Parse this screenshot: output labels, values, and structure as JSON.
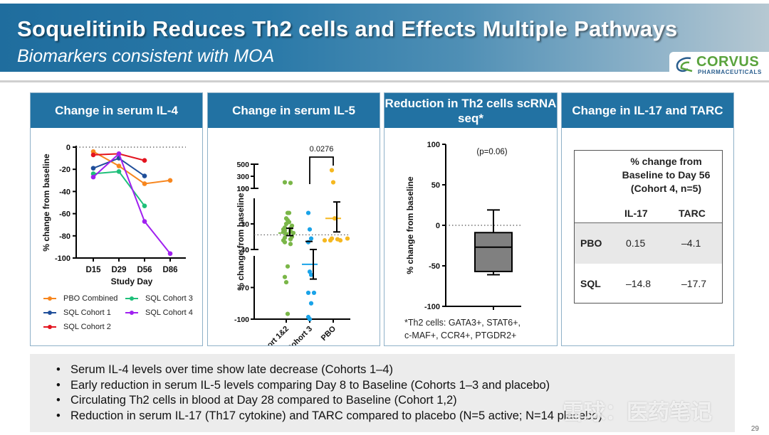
{
  "header": {
    "title": "Soquelitinib Reduces Th2 cells and Effects Multiple Pathways",
    "subtitle": "Biomarkers consistent with MOA",
    "logo_name": "CORVUS",
    "logo_sub": "PHARMACEUTICALS",
    "colors": {
      "banner": "#2272a3",
      "logo_green": "#5aa33d",
      "logo_blue": "#2a5e8e"
    }
  },
  "panels": [
    {
      "title": "Change in serum IL-4"
    },
    {
      "title": "Change in serum IL-5"
    },
    {
      "title": "Reduction in Th2 cells scRNA seq*"
    },
    {
      "title": "Change in IL-17 and TARC"
    }
  ],
  "chart_data": [
    {
      "type": "line",
      "title": "Change in serum IL-4",
      "xlabel": "Study Day",
      "ylabel": "% change from baseline",
      "categories": [
        "D15",
        "D29",
        "D56",
        "D86"
      ],
      "ylim": [
        -100,
        0
      ],
      "yticks": [
        0,
        -20,
        -40,
        -60,
        -80,
        -100
      ],
      "ytick_labels": [
        "0",
        "-20",
        "-40",
        "-60",
        "-80",
        "-100"
      ],
      "reference_line": 0,
      "legend_placement": "bottom",
      "series": [
        {
          "name": "PBO Combined",
          "color": "#f7861e",
          "values": [
            -4,
            -17,
            -33,
            -30
          ]
        },
        {
          "name": "SQL Cohort 1",
          "color": "#1f4e9a",
          "values": [
            -19,
            -10,
            -26,
            null
          ]
        },
        {
          "name": "SQL Cohort 2",
          "color": "#e3141f",
          "values": [
            -7,
            -6,
            -12,
            null
          ]
        },
        {
          "name": "SQL Cohort 3",
          "color": "#1fbf7a",
          "values": [
            -24,
            -22,
            -53,
            null
          ]
        },
        {
          "name": "SQL Cohort 4",
          "color": "#a020f0",
          "values": [
            -27,
            -6,
            -67,
            -96
          ]
        }
      ]
    },
    {
      "type": "scatter",
      "title": "Change in serum IL-5",
      "ylabel": "% change from baseline",
      "categories": [
        "Cohort 1&2",
        "Cohort 3",
        "PBO"
      ],
      "y_segments": [
        {
          "range": [
            100,
            500
          ],
          "ticks": [
            "500",
            "300",
            "100"
          ]
        },
        {
          "range": [
            -40,
            100
          ],
          "ticks": [
            "100",
            "30",
            "-40"
          ]
        },
        {
          "range": [
            -100,
            -40
          ],
          "ticks": [
            "-40",
            "-70",
            "-100"
          ]
        }
      ],
      "reference_line": 0,
      "annotation": {
        "text": "0.0276",
        "between": [
          "Cohort 3",
          "PBO"
        ]
      },
      "series": [
        {
          "name": "Cohort 1&2",
          "color": "#7ab648",
          "values": [
            200,
            190,
            60,
            60,
            45,
            40,
            35,
            30,
            25,
            20,
            18,
            15,
            12,
            10,
            8,
            5,
            2,
            -5,
            -8,
            -12,
            -15,
            -20,
            -25,
            -50,
            -60,
            -65,
            -95
          ],
          "mean": 5,
          "sem_low": -2,
          "sem_high": 18
        },
        {
          "name": "Cohort 3",
          "color": "#1aa3e8",
          "values": [
            60,
            15,
            -10,
            -20,
            -55,
            -58,
            -75,
            -75,
            -85,
            -98,
            -100
          ],
          "mean": -48,
          "sem_low": -62,
          "sem_high": -40,
          "extra_marker": -18
        },
        {
          "name": "PBO",
          "color": "#f5b820",
          "values": [
            400,
            200,
            45,
            -10,
            -12,
            -15,
            -15,
            -15,
            -10
          ],
          "mean": 45,
          "sem_low": 8,
          "sem_high": 90
        }
      ]
    },
    {
      "type": "box",
      "title": "Reduction in Th2 cells scRNA seq*",
      "ylabel": "% change from baseline",
      "ylim": [
        -100,
        100
      ],
      "yticks": [
        100,
        50,
        0,
        -50,
        -100
      ],
      "ytick_labels": [
        "100",
        "50",
        "0",
        "-50",
        "-100"
      ],
      "reference_line": 0,
      "annotation": "(p=0.06)",
      "box": {
        "whisker_high": 19,
        "q3": -9,
        "median": -27,
        "q1": -57,
        "whisker_low": -61,
        "color": "#808080"
      },
      "footnote": [
        "*Th2 cells: GATA3+, STAT6+,",
        "c-MAF+, CCR4+, PTGDR2+"
      ]
    },
    {
      "type": "table",
      "title": "Change in IL-17 and TARC",
      "header": [
        "% change from",
        "Baseline to Day 56",
        "(Cohort 4, n=5)"
      ],
      "columns": [
        "IL-17",
        "TARC"
      ],
      "rows": [
        {
          "label": "PBO",
          "values": [
            "0.15",
            "–4.1"
          ]
        },
        {
          "label": "SQL",
          "values": [
            "–14.8",
            "–17.7"
          ]
        }
      ]
    }
  ],
  "summary": [
    "Serum IL-4 levels over time show late decrease (Cohorts 1–4)",
    "Early reduction in serum IL-5 levels comparing Day 8 to Baseline (Cohorts 1–3 and placebo)",
    "Circulating Th2 cells in blood at Day 28 compared to Baseline (Cohort 1,2)",
    "Reduction in serum IL-17 (Th17 cytokine) and TARC compared to placebo (N=5 active; N=14 placebo)"
  ],
  "watermark": "雪球：医药笔记",
  "page_number": "29"
}
